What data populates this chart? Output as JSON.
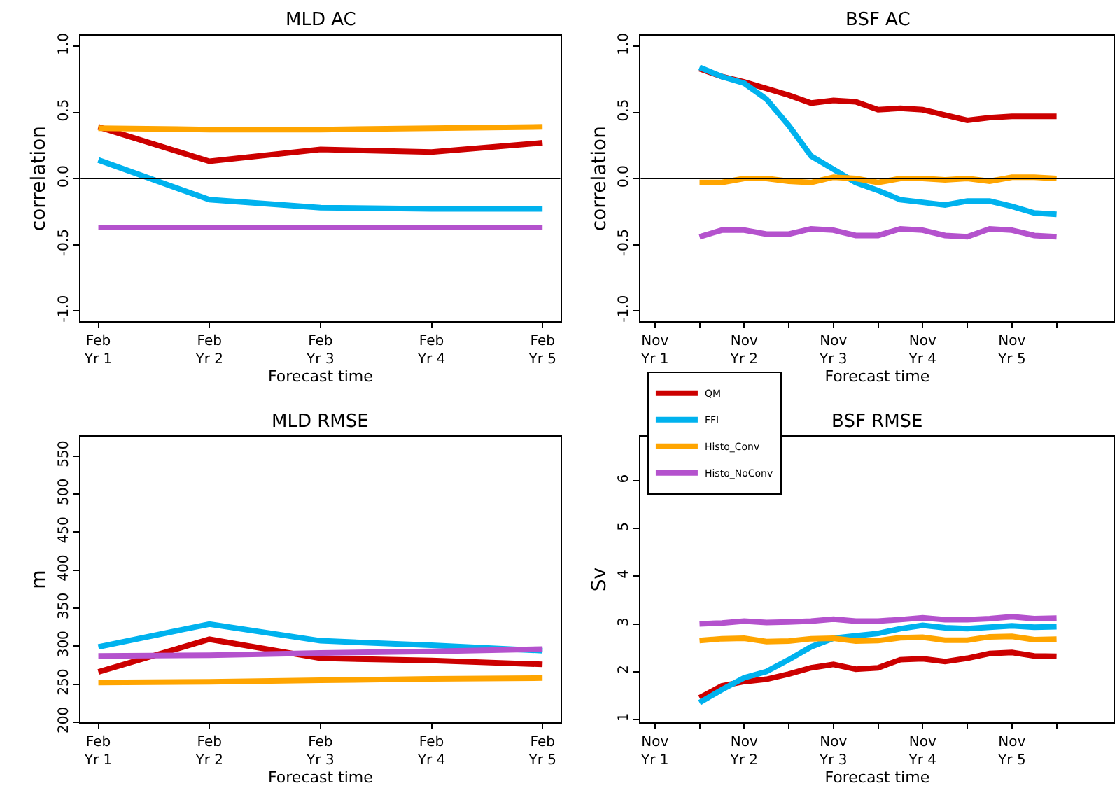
{
  "chart_data": [
    {
      "type": "line",
      "title": "MLD AC",
      "xlabel": "Forecast time",
      "ylabel": "correlation",
      "legend": "bottom right",
      "categories": [
        "Feb\nYr 1",
        "Feb\nYr 2",
        "Feb\nYr 3",
        "Feb\nYr 4",
        "Feb\nYr 5"
      ],
      "ylim": [
        -1.08,
        1.08
      ],
      "yticks": [
        {
          "value": -1,
          "label": "-1.0"
        },
        {
          "value": -0.5,
          "label": "-0.5"
        },
        {
          "value": 0,
          "label": "0.0"
        },
        {
          "value": 0.5,
          "label": "0.5"
        },
        {
          "value": 1,
          "label": "1.0"
        }
      ],
      "ref_lines": [
        {
          "axis": "y",
          "value": 0,
          "color": "#000000"
        }
      ],
      "series": [
        {
          "name": "QM",
          "color": "#cc0000",
          "values": [
            0.39,
            0.13,
            0.22,
            0.2,
            0.27
          ]
        },
        {
          "name": "FFI",
          "color": "#00b2ee",
          "values": [
            0.14,
            -0.16,
            -0.22,
            -0.23,
            -0.23
          ]
        },
        {
          "name": "Histo_Conv",
          "color": "#ffa500",
          "values": [
            0.38,
            0.37,
            0.37,
            0.38,
            0.39
          ]
        },
        {
          "name": "Histo_NoConv",
          "color": "#b452cd",
          "values": [
            -0.37,
            -0.37,
            -0.37,
            -0.37,
            -0.37
          ]
        }
      ]
    },
    {
      "type": "line",
      "title": "BSF AC",
      "xlabel": "Forecast time",
      "ylabel": "correlation",
      "categories": [
        "Nov\nYr 1",
        null,
        null,
        null,
        "Nov\nYr 2",
        null,
        null,
        null,
        "Nov\nYr 3",
        null,
        null,
        null,
        "Nov\nYr 4",
        null,
        null,
        null,
        "Nov\nYr 5",
        null,
        null
      ],
      "ylim": [
        -1.08,
        1.08
      ],
      "yticks": [
        {
          "value": -1,
          "label": "-1.0"
        },
        {
          "value": -0.5,
          "label": "-0.5"
        },
        {
          "value": 0,
          "label": "0.0"
        },
        {
          "value": 0.5,
          "label": "0.5"
        },
        {
          "value": 1,
          "label": "1.0"
        }
      ],
      "ref_lines": [
        {
          "axis": "y",
          "value": 0,
          "color": "#000000"
        }
      ],
      "series": [
        {
          "color": "#cc0000",
          "values": [
            null,
            null,
            0.83,
            0.77,
            0.73,
            0.68,
            0.63,
            0.57,
            0.59,
            0.58,
            0.52,
            0.53,
            0.52,
            0.48,
            0.44,
            0.46,
            0.47,
            0.47,
            0.47
          ]
        },
        {
          "color": "#00b2ee",
          "values": [
            null,
            null,
            0.84,
            0.77,
            0.72,
            0.6,
            0.4,
            0.17,
            0.07,
            -0.03,
            -0.09,
            -0.16,
            -0.18,
            -0.2,
            -0.17,
            -0.17,
            -0.21,
            -0.26,
            -0.27
          ]
        },
        {
          "color": "#ffa500",
          "values": [
            null,
            null,
            -0.03,
            -0.03,
            0.0,
            0.0,
            -0.02,
            -0.03,
            0.01,
            0.0,
            -0.03,
            0.0,
            0.0,
            -0.01,
            0.0,
            -0.02,
            0.01,
            0.01,
            0.0
          ]
        },
        {
          "color": "#b452cd",
          "values": [
            null,
            null,
            -0.44,
            -0.39,
            -0.39,
            -0.42,
            -0.42,
            -0.38,
            -0.39,
            -0.43,
            -0.43,
            -0.38,
            -0.39,
            -0.43,
            -0.44,
            -0.38,
            -0.39,
            -0.43,
            -0.44
          ]
        }
      ]
    },
    {
      "type": "line",
      "title": "MLD RMSE",
      "xlabel": "Forecast time",
      "ylabel": "m",
      "categories": [
        "Feb\nYr 1",
        "Feb\nYr 2",
        "Feb\nYr 3",
        "Feb\nYr 4",
        "Feb\nYr 5"
      ],
      "ylim": [
        200,
        575
      ],
      "yticks": [
        200,
        250,
        300,
        350,
        400,
        450,
        500,
        550
      ],
      "series": [
        {
          "color": "#cc0000",
          "values": [
            266,
            309,
            284,
            281,
            276
          ]
        },
        {
          "color": "#00b2ee",
          "values": [
            299,
            329,
            307,
            301,
            294
          ]
        },
        {
          "color": "#ffa500",
          "values": [
            252,
            253,
            255,
            257,
            258
          ]
        },
        {
          "color": "#b452cd",
          "values": [
            287,
            288,
            291,
            293,
            296
          ]
        }
      ]
    },
    {
      "type": "line",
      "title": "BSF RMSE",
      "xlabel": "Forecast time",
      "ylabel": "Sv",
      "categories": [
        "Nov\nYr 1",
        null,
        null,
        null,
        "Nov\nYr 2",
        null,
        null,
        null,
        "Nov\nYr 3",
        null,
        null,
        null,
        "Nov\nYr 4",
        null,
        null,
        null,
        "Nov\nYr 5",
        null,
        null
      ],
      "ylim": [
        0.94,
        6.92
      ],
      "yticks": [
        1,
        2,
        3,
        4,
        5,
        6
      ],
      "series": [
        {
          "color": "#cc0000",
          "values": [
            null,
            null,
            1.45,
            1.7,
            1.79,
            1.84,
            1.95,
            2.08,
            2.15,
            2.05,
            2.08,
            2.25,
            2.27,
            2.21,
            2.28,
            2.38,
            2.4,
            2.33,
            2.32
          ]
        },
        {
          "color": "#00b2ee",
          "values": [
            null,
            null,
            1.35,
            1.62,
            1.87,
            2.0,
            2.25,
            2.52,
            2.7,
            2.75,
            2.8,
            2.9,
            2.97,
            2.92,
            2.9,
            2.93,
            2.96,
            2.93,
            2.94
          ]
        },
        {
          "color": "#ffa500",
          "values": [
            null,
            null,
            2.65,
            2.69,
            2.7,
            2.63,
            2.64,
            2.69,
            2.7,
            2.64,
            2.65,
            2.71,
            2.72,
            2.66,
            2.66,
            2.73,
            2.74,
            2.67,
            2.68
          ]
        },
        {
          "color": "#b452cd",
          "values": [
            null,
            null,
            3.0,
            3.02,
            3.06,
            3.03,
            3.04,
            3.06,
            3.1,
            3.06,
            3.06,
            3.09,
            3.13,
            3.09,
            3.09,
            3.11,
            3.15,
            3.11,
            3.12
          ]
        }
      ]
    }
  ]
}
